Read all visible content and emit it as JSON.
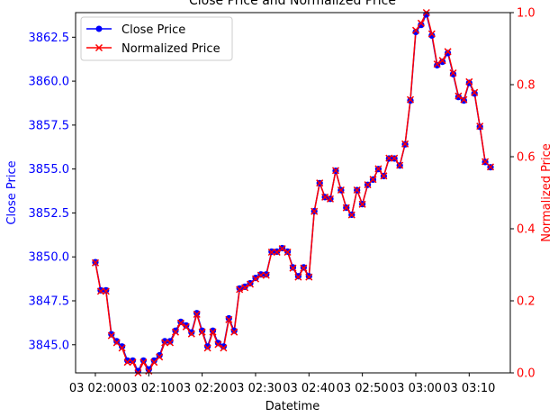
{
  "chart_data": {
    "type": "line",
    "title": "Close Price and Normalized Price",
    "xlabel": "Datetime",
    "ylabel_left": "Close Price",
    "ylabel_right": "Normalized Price",
    "x_ticks": [
      "03 02:00",
      "03 02:10",
      "03 02:20",
      "03 02:30",
      "03 02:40",
      "03 02:50",
      "03 03:00",
      "03 03:10"
    ],
    "x_tick_minutes": [
      0,
      10,
      20,
      30,
      40,
      50,
      60,
      70
    ],
    "x_minutes": [
      0,
      1,
      2,
      3,
      4,
      5,
      6,
      7,
      8,
      9,
      10,
      11,
      12,
      13,
      14,
      15,
      16,
      17,
      18,
      19,
      20,
      21,
      22,
      23,
      24,
      25,
      26,
      27,
      28,
      29,
      30,
      31,
      32,
      33,
      34,
      35,
      36,
      37,
      38,
      39,
      40,
      41,
      42,
      43,
      44,
      45,
      46,
      47,
      48,
      49,
      50,
      51,
      52,
      53,
      54,
      55,
      56,
      57,
      58,
      59,
      60,
      61,
      62,
      63,
      64,
      65,
      66,
      67,
      68,
      69,
      70,
      71,
      72,
      73,
      74
    ],
    "xlim_minutes": [
      -3.7,
      77.7
    ],
    "y_left_ticks": [
      "3845.0",
      "3847.5",
      "3850.0",
      "3852.5",
      "3855.0",
      "3857.5",
      "3860.0",
      "3862.5"
    ],
    "y_left_tick_values": [
      3845.0,
      3847.5,
      3850.0,
      3852.5,
      3855.0,
      3857.5,
      3860.0,
      3862.5
    ],
    "ylim_left": [
      3843.4,
      3863.9
    ],
    "y_right_ticks": [
      "0.0",
      "0.2",
      "0.4",
      "0.6",
      "0.8",
      "1.0"
    ],
    "y_right_tick_values": [
      0.0,
      0.2,
      0.4,
      0.6,
      0.8,
      1.0
    ],
    "ylim_right": [
      0.0,
      1.0
    ],
    "series": [
      {
        "name": "Close Price",
        "color": "#0000ff",
        "marker": "circle",
        "axis": "left",
        "values": [
          3849.7,
          3848.1,
          3848.1,
          3845.6,
          3845.2,
          3844.9,
          3844.1,
          3844.1,
          3843.5,
          3844.1,
          3843.6,
          3844.1,
          3844.4,
          3845.2,
          3845.2,
          3845.8,
          3846.3,
          3846.1,
          3845.7,
          3846.8,
          3845.8,
          3844.9,
          3845.8,
          3845.1,
          3844.9,
          3846.5,
          3845.8,
          3848.2,
          3848.3,
          3848.5,
          3848.8,
          3849.0,
          3849.0,
          3850.3,
          3850.3,
          3850.5,
          3850.3,
          3849.4,
          3848.9,
          3849.4,
          3848.9,
          3852.6,
          3854.2,
          3853.4,
          3853.3,
          3854.9,
          3853.8,
          3852.8,
          3852.4,
          3853.8,
          3853.0,
          3854.1,
          3854.4,
          3855.0,
          3854.6,
          3855.6,
          3855.6,
          3855.2,
          3856.4,
          3858.9,
          3862.8,
          3863.2,
          3863.8,
          3862.6,
          3860.9,
          3861.1,
          3861.6,
          3860.4,
          3859.1,
          3858.9,
          3859.9,
          3859.3,
          3857.4,
          3855.4,
          3855.1
        ]
      },
      {
        "name": "Normalized Price",
        "color": "#ff0000",
        "marker": "x",
        "axis": "right"
      }
    ],
    "legend": "upper-left",
    "grid": false
  }
}
